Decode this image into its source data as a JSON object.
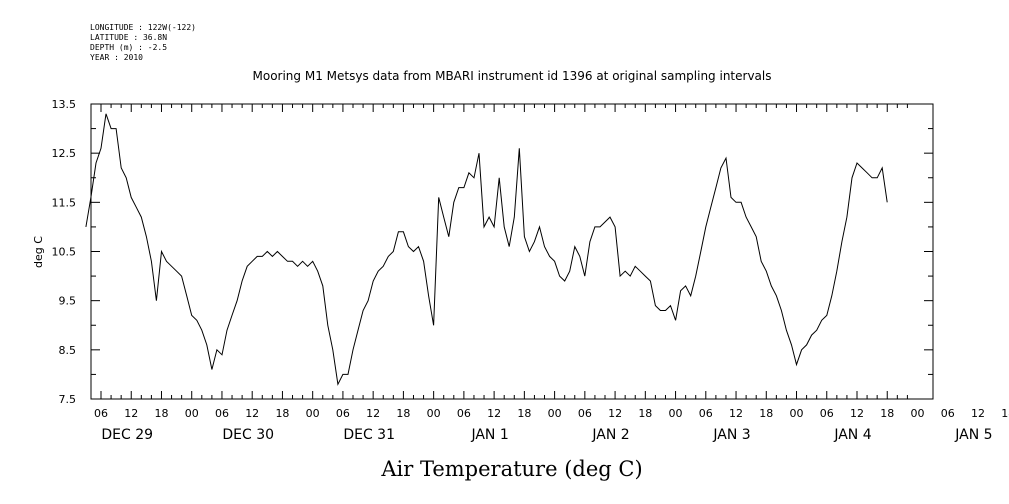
{
  "header": {
    "longitude": "LONGITUDE : 122W(-122)",
    "latitude": "LATITUDE : 36.8N",
    "depth": "DEPTH (m) : -2.5",
    "year": "YEAR : 2010"
  },
  "chart_data": {
    "type": "line",
    "title": "Mooring M1 Metsys data from MBARI instrument id 1396 at original sampling intervals",
    "ylabel": "deg C",
    "xlabel": "Air Temperature (deg C)",
    "ylim": [
      7.5,
      13.5
    ],
    "xlim_hours": [
      3,
      163
    ],
    "yticks": [
      7.5,
      8.5,
      9.5,
      10.5,
      11.5,
      12.5,
      13.5
    ],
    "hour_labels": [
      "06",
      "12",
      "18",
      "00",
      "06",
      "12",
      "18",
      "00",
      "06",
      "12",
      "18",
      "00",
      "06",
      "12",
      "18",
      "00",
      "06",
      "12",
      "18",
      "00",
      "06",
      "12",
      "18",
      "00",
      "06",
      "12",
      "18",
      "00",
      "06",
      "12",
      "18",
      "00"
    ],
    "day_labels": [
      "DEC 29",
      "DEC 30",
      "DEC 31",
      "JAN  1",
      "JAN  2",
      "JAN  3",
      "JAN  4",
      "JAN  5"
    ],
    "grid": false,
    "series": [
      {
        "x": [
          3,
          4,
          5,
          6,
          7,
          8,
          9,
          10,
          11,
          12,
          13,
          14,
          15,
          16,
          17,
          18,
          19,
          20,
          21,
          22,
          23,
          24,
          25,
          26,
          27,
          28,
          29,
          30,
          31,
          32,
          33,
          34,
          35,
          36,
          37,
          38,
          39,
          40,
          41,
          42,
          43,
          44,
          45,
          46,
          47,
          48,
          49,
          50,
          51,
          52,
          53,
          54,
          55,
          56,
          57,
          58,
          59,
          60,
          61,
          62,
          63,
          64,
          65,
          66,
          67,
          68,
          69,
          70,
          71,
          72,
          73,
          74,
          75,
          76,
          77,
          78,
          79,
          80,
          81,
          82,
          83,
          84,
          85,
          86,
          87,
          88,
          89,
          90,
          91,
          92,
          93,
          94,
          95,
          96,
          97,
          98,
          99,
          100,
          101,
          102,
          103,
          104,
          105,
          106,
          107,
          108,
          109,
          110,
          111,
          112,
          113,
          114,
          115,
          116,
          117,
          118,
          119,
          120,
          121,
          122,
          123,
          124,
          125,
          126,
          127,
          128,
          129,
          130,
          131,
          132,
          133,
          134,
          135,
          136,
          137,
          138,
          139,
          140,
          141,
          142,
          143,
          144,
          145,
          146,
          147,
          148,
          149,
          150,
          151,
          152,
          153,
          154,
          155,
          156,
          157,
          158,
          159,
          160,
          161,
          162
        ],
        "y": [
          11.0,
          11.6,
          12.3,
          12.6,
          13.3,
          13.0,
          13.0,
          12.2,
          12.0,
          11.6,
          11.4,
          11.2,
          10.8,
          10.3,
          9.5,
          10.5,
          10.3,
          10.2,
          10.1,
          10.0,
          9.6,
          9.2,
          9.1,
          8.9,
          8.6,
          8.1,
          8.5,
          8.4,
          8.9,
          9.2,
          9.5,
          9.9,
          10.2,
          10.3,
          10.4,
          10.4,
          10.5,
          10.4,
          10.5,
          10.4,
          10.3,
          10.3,
          10.2,
          10.3,
          10.2,
          10.3,
          10.1,
          9.8,
          9.0,
          8.5,
          7.8,
          8.0,
          8.0,
          8.5,
          8.9,
          9.3,
          9.5,
          9.9,
          10.1,
          10.2,
          10.4,
          10.5,
          10.9,
          10.9,
          10.6,
          10.5,
          10.6,
          10.3,
          9.6,
          9.0,
          11.6,
          11.2,
          10.8,
          11.5,
          11.8,
          11.8,
          12.1,
          12.0,
          12.5,
          11.0,
          11.2,
          11.0,
          12.0,
          11.0,
          10.6,
          11.2,
          12.6,
          10.8,
          10.5,
          10.7,
          11.0,
          10.6,
          10.4,
          10.3,
          10.0,
          9.9,
          10.1,
          10.6,
          10.4,
          10.0,
          10.7,
          11.0,
          11.0,
          11.1,
          11.2,
          11.0,
          10.0,
          10.1,
          10.0,
          10.2,
          10.1,
          10.0,
          9.9,
          9.4,
          9.3,
          9.3,
          9.4,
          9.1,
          9.7,
          9.8,
          9.6,
          10.0,
          10.5,
          11.0,
          11.4,
          11.8,
          12.2,
          12.4,
          11.6,
          11.5,
          11.5,
          11.2,
          11.0,
          10.8,
          10.3,
          10.1,
          9.8,
          9.6,
          9.3,
          8.9,
          8.6,
          8.2,
          8.5,
          8.6,
          8.8,
          8.9,
          9.1,
          9.2,
          9.6,
          10.1,
          10.7,
          11.2,
          12.0,
          12.3,
          12.2,
          12.1,
          12.0,
          12.0,
          12.2,
          11.5
        ]
      }
    ]
  }
}
